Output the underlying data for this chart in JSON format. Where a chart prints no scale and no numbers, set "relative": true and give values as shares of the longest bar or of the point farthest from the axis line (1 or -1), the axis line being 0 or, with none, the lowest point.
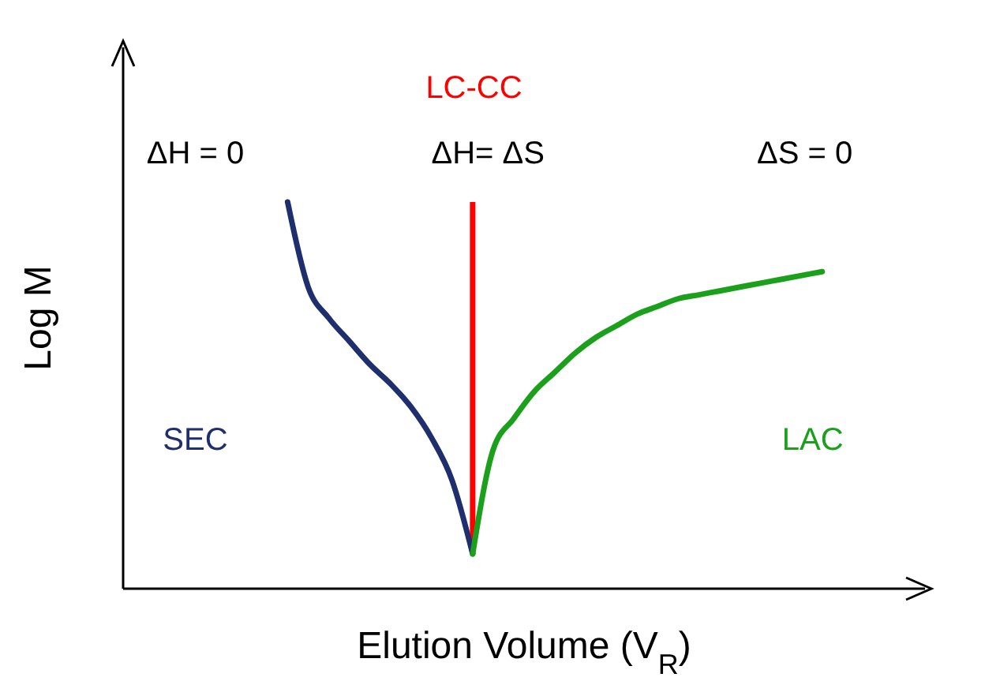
{
  "chart_data": {
    "type": "line",
    "relative": true,
    "grid": false,
    "legend": false,
    "marker": "none",
    "line_style": "solid",
    "xlabel": "Elution Volume (V$_{R}$)",
    "ylabel": "Log M",
    "categories": [
      null,
      null,
      null,
      null,
      null,
      null,
      null,
      null,
      null,
      null,
      null,
      null,
      null,
      null,
      null,
      null,
      null,
      null,
      null,
      null,
      null,
      null,
      null,
      null,
      null,
      null,
      null,
      null,
      null,
      null,
      null,
      null,
      null,
      null,
      null,
      null,
      null,
      null,
      null,
      null
    ],
    "series": [
      {
        "name": "SEC",
        "color": "#1f2f6e",
        "values": [
          null,
          null,
          null,
          null,
          null,
          null,
          null,
          null,
          1.0,
          0.78,
          0.7,
          0.64,
          0.58,
          0.53,
          0.47,
          0.39,
          0.28,
          0.09,
          null,
          null,
          null,
          null,
          null,
          null,
          null,
          null,
          null,
          null,
          null,
          null,
          null,
          null,
          null,
          null,
          null,
          null,
          null,
          null,
          null,
          null
        ]
      },
      {
        "name": "LAC",
        "color": "#1aa01a",
        "values": [
          null,
          null,
          null,
          null,
          null,
          null,
          null,
          null,
          null,
          null,
          null,
          null,
          null,
          null,
          null,
          null,
          null,
          0.09,
          0.36,
          0.44,
          0.51,
          0.56,
          0.61,
          0.65,
          0.68,
          0.71,
          0.73,
          0.75,
          0.76,
          0.77,
          0.78,
          0.79,
          0.8,
          0.81,
          0.82,
          null,
          null,
          null,
          null,
          null
        ]
      }
    ],
    "annotations": [
      "ΔH = 0",
      "ΔH= ΔS",
      "ΔS = 0",
      "LC-CC"
    ]
  }
}
